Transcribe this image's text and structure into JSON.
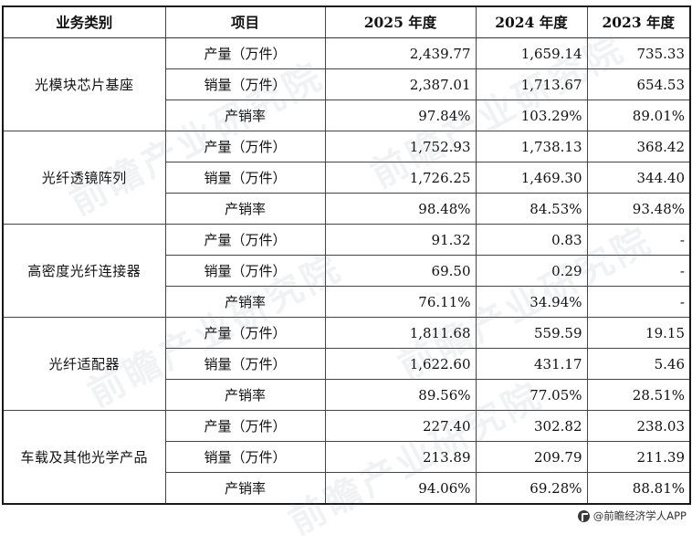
{
  "table": {
    "headers": [
      "业务类别",
      "项目",
      "2025 年度",
      "2024 年度",
      "2023 年度"
    ],
    "groups": [
      {
        "category": "光模块芯片基座",
        "rows": [
          {
            "item": "产量（万件）",
            "values": [
              "2,439.77",
              "1,659.14",
              "735.33"
            ]
          },
          {
            "item": "销量（万件）",
            "values": [
              "2,387.01",
              "1,713.67",
              "654.53"
            ]
          },
          {
            "item": "产销率",
            "values": [
              "97.84%",
              "103.29%",
              "89.01%"
            ]
          }
        ]
      },
      {
        "category": "光纤透镜阵列",
        "rows": [
          {
            "item": "产量（万件）",
            "values": [
              "1,752.93",
              "1,738.13",
              "368.42"
            ]
          },
          {
            "item": "销量（万件）",
            "values": [
              "1,726.25",
              "1,469.30",
              "344.40"
            ]
          },
          {
            "item": "产销率",
            "values": [
              "98.48%",
              "84.53%",
              "93.48%"
            ]
          }
        ]
      },
      {
        "category": "高密度光纤连接器",
        "rows": [
          {
            "item": "产量（万件）",
            "values": [
              "91.32",
              "0.83",
              "-"
            ]
          },
          {
            "item": "销量（万件）",
            "values": [
              "69.50",
              "0.29",
              "-"
            ]
          },
          {
            "item": "产销率",
            "values": [
              "76.11%",
              "34.94%",
              "-"
            ]
          }
        ]
      },
      {
        "category": "光纤适配器",
        "rows": [
          {
            "item": "产量（万件）",
            "values": [
              "1,811.68",
              "559.59",
              "19.15"
            ]
          },
          {
            "item": "销量（万件）",
            "values": [
              "1,622.60",
              "431.17",
              "5.46"
            ]
          },
          {
            "item": "产销率",
            "values": [
              "89.56%",
              "77.05%",
              "28.51%"
            ]
          }
        ]
      },
      {
        "category": "车载及其他光学产品",
        "rows": [
          {
            "item": "产量（万件）",
            "values": [
              "227.40",
              "302.82",
              "238.03"
            ]
          },
          {
            "item": "销量（万件）",
            "values": [
              "213.89",
              "209.79",
              "211.39"
            ]
          },
          {
            "item": "产销率",
            "values": [
              "94.06%",
              "69.28%",
              "88.81%"
            ]
          }
        ]
      }
    ]
  },
  "watermark": {
    "text": "前瞻产业研究院"
  },
  "footer": {
    "source": "@前瞻经济学人APP",
    "logo_icon": "qianzhan-logo-icon"
  }
}
